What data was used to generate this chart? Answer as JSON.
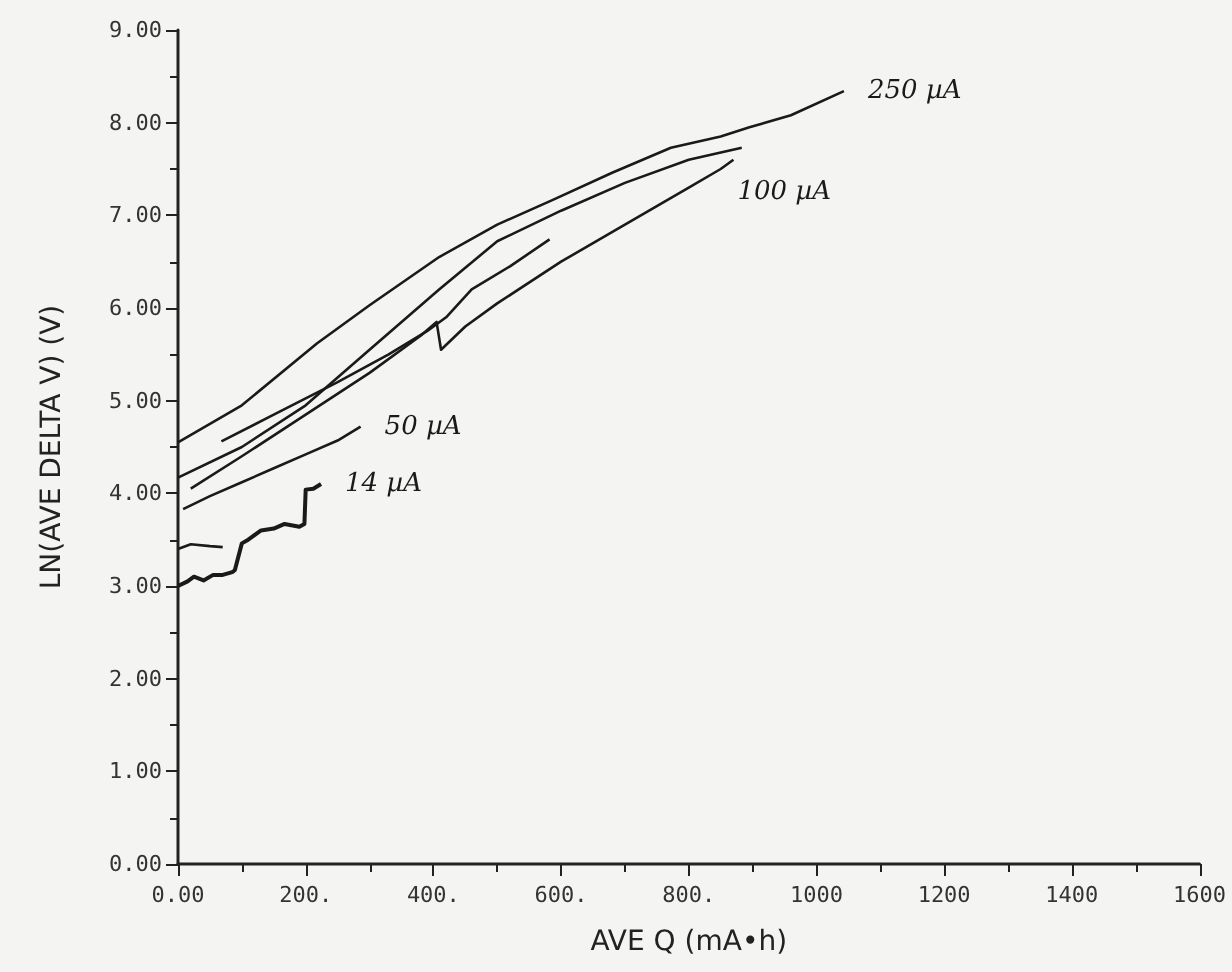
{
  "chart_data": {
    "type": "line",
    "xlabel": "AVE Q (mA•h)",
    "ylabel": "LN(AVE DELTA V) (V)",
    "xlim": [
      0,
      1600
    ],
    "ylim": [
      0,
      9
    ],
    "xticks": [
      {
        "value": 0,
        "label": "0.00"
      },
      {
        "value": 200,
        "label": "200."
      },
      {
        "value": 400,
        "label": "400."
      },
      {
        "value": 600,
        "label": "600."
      },
      {
        "value": 800,
        "label": "800."
      },
      1000,
      1200,
      1400,
      1600
    ],
    "yticks": [
      {
        "value": 0,
        "label": "0.00"
      },
      {
        "value": 1,
        "label": "1.00"
      },
      {
        "value": 2,
        "label": "2.00"
      },
      {
        "value": 3,
        "label": "3.00"
      },
      {
        "value": 4,
        "label": "4.00"
      },
      {
        "value": 5,
        "label": "5.00"
      },
      {
        "value": 6,
        "label": "6.00"
      },
      {
        "value": 7,
        "label": "7.00"
      },
      {
        "value": 8,
        "label": "8.00"
      },
      {
        "value": 9,
        "label": "9.00"
      }
    ],
    "grid": false,
    "marker": "none",
    "line_style": "solid",
    "series": [
      {
        "name": "250 µA",
        "color": "#1a1a1a",
        "x": [
          0,
          100,
          218,
          300,
          409,
          500,
          588,
          680,
          772,
          850,
          895,
          960,
          1043
        ],
        "values": [
          4.55,
          4.95,
          5.62,
          6.03,
          6.55,
          6.9,
          7.17,
          7.46,
          7.73,
          7.85,
          7.95,
          8.08,
          8.34
        ]
      },
      {
        "color": "#1a1a1a",
        "x": [
          0,
          100,
          200,
          300,
          409,
          500,
          600,
          700,
          800,
          883
        ],
        "values": [
          4.17,
          4.5,
          4.95,
          5.55,
          6.2,
          6.72,
          7.05,
          7.35,
          7.6,
          7.73
        ]
      },
      {
        "color": "#1a1a1a",
        "x": [
          68,
          150,
          250,
          330,
          390,
          420,
          460,
          520,
          582
        ],
        "values": [
          4.56,
          4.85,
          5.2,
          5.5,
          5.75,
          5.9,
          6.2,
          6.45,
          6.74
        ]
      },
      {
        "name": "100 µA",
        "color": "#1a1a1a",
        "x": [
          20,
          100,
          200,
          300,
          380,
          405,
          412,
          450,
          500,
          600,
          700,
          800,
          850,
          870
        ],
        "values": [
          4.05,
          4.4,
          4.85,
          5.3,
          5.7,
          5.85,
          5.55,
          5.8,
          6.05,
          6.5,
          6.9,
          7.3,
          7.5,
          7.6
        ]
      },
      {
        "name": "50 µA",
        "color": "#1a1a1a",
        "x": [
          8,
          50,
          100,
          150,
          200,
          250,
          286
        ],
        "values": [
          3.83,
          3.97,
          4.12,
          4.27,
          4.42,
          4.57,
          4.72
        ]
      },
      {
        "name": "14 µA",
        "color": "#1a1a1a",
        "x": [
          0,
          15,
          25,
          40,
          55,
          70,
          85,
          89,
          100,
          110,
          130,
          150,
          167,
          190,
          198,
          200,
          212,
          224
        ],
        "values": [
          3.0,
          3.05,
          3.1,
          3.06,
          3.12,
          3.12,
          3.15,
          3.17,
          3.46,
          3.5,
          3.6,
          3.62,
          3.67,
          3.64,
          3.67,
          4.04,
          4.05,
          4.1
        ]
      },
      {
        "color": "#1a1a1a",
        "x": [
          0,
          20,
          50,
          70
        ],
        "values": [
          3.4,
          3.45,
          3.43,
          3.42
        ]
      }
    ]
  }
}
